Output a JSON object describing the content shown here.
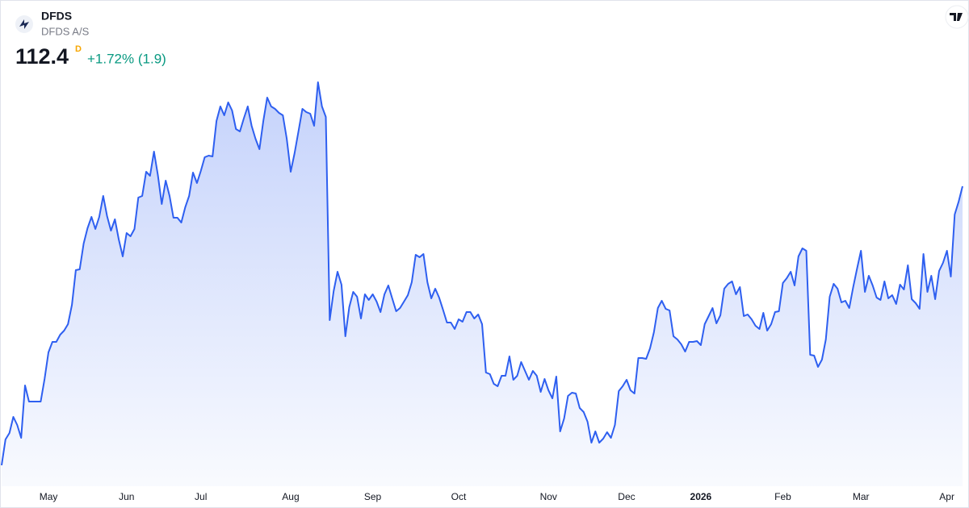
{
  "chart_data": {
    "type": "area",
    "title": "DFDS",
    "subtitle": "DFDS A/S",
    "price": 112.4,
    "interval": "D",
    "change": "+1.72% (1.9)",
    "color": "#2e5ff0",
    "ylim": [
      76,
      128
    ],
    "xticks": [
      {
        "value": 12,
        "label": "May"
      },
      {
        "value": 32,
        "label": "Jun"
      },
      {
        "value": 51,
        "label": "Jul"
      },
      {
        "value": 74,
        "label": "Aug"
      },
      {
        "value": 95,
        "label": "Sep"
      },
      {
        "value": 117,
        "label": "Oct"
      },
      {
        "value": 140,
        "label": "Nov"
      },
      {
        "value": 160,
        "label": "Dec"
      },
      {
        "value": 179,
        "label": "2026"
      },
      {
        "value": 200,
        "label": "Feb"
      },
      {
        "value": 220,
        "label": "Mar"
      },
      {
        "value": 242,
        "label": "Apr"
      }
    ],
    "values": [
      77.8,
      81.0,
      81.8,
      83.8,
      82.8,
      81.2,
      87.7,
      85.7,
      85.7,
      85.7,
      85.7,
      88.5,
      91.8,
      93.1,
      93.1,
      94.0,
      94.5,
      95.3,
      97.7,
      102.0,
      102.1,
      105.3,
      107.2,
      108.6,
      107.1,
      108.6,
      111.2,
      108.7,
      106.9,
      108.3,
      105.8,
      103.7,
      106.6,
      106.2,
      107.1,
      111.0,
      111.2,
      114.2,
      113.7,
      116.7,
      113.8,
      110.2,
      113.1,
      111.2,
      108.5,
      108.5,
      107.9,
      109.8,
      111.2,
      114.1,
      112.8,
      114.3,
      116.0,
      116.2,
      116.1,
      120.5,
      122.3,
      121.2,
      122.8,
      121.8,
      119.5,
      119.2,
      120.8,
      122.3,
      119.9,
      118.3,
      117.0,
      120.5,
      123.4,
      122.3,
      122.0,
      121.5,
      121.2,
      118.3,
      114.2,
      116.5,
      119.2,
      122.0,
      121.6,
      121.4,
      119.9,
      125.3,
      122.3,
      121.0,
      95.8,
      99.4,
      101.8,
      100.2,
      93.8,
      97.4,
      99.3,
      98.7,
      96.0,
      99.0,
      98.3,
      99.0,
      98.1,
      96.8,
      99.0,
      100.1,
      98.5,
      96.9,
      97.3,
      98.1,
      98.9,
      100.5,
      103.9,
      103.6,
      104.0,
      100.5,
      98.5,
      99.7,
      98.6,
      97.1,
      95.5,
      95.5,
      94.7,
      95.9,
      95.6,
      96.8,
      96.8,
      96.0,
      96.5,
      95.3,
      89.3,
      89.1,
      87.9,
      87.6,
      88.9,
      88.9,
      91.3,
      88.4,
      88.9,
      90.6,
      89.5,
      88.4,
      89.5,
      88.9,
      86.9,
      88.5,
      87.1,
      86.1,
      88.8,
      82.0,
      83.6,
      86.4,
      86.8,
      86.7,
      84.9,
      84.4,
      83.2,
      80.6,
      82.0,
      80.6,
      81.1,
      81.9,
      81.2,
      82.8,
      87.0,
      87.6,
      88.4,
      87.1,
      86.7,
      91.1,
      91.1,
      91.0,
      92.3,
      94.3,
      97.3,
      98.2,
      97.2,
      97.0,
      93.8,
      93.4,
      92.8,
      91.9,
      93.1,
      93.1,
      93.2,
      92.7,
      95.3,
      96.3,
      97.3,
      95.4,
      96.4,
      99.7,
      100.3,
      100.6,
      99.0,
      99.9,
      96.3,
      96.5,
      95.9,
      95.1,
      94.7,
      96.7,
      94.5,
      95.3,
      96.8,
      96.9,
      100.4,
      101.0,
      101.8,
      100.1,
      103.7,
      104.7,
      104.4,
      91.5,
      91.4,
      90.0,
      90.9,
      93.4,
      98.7,
      100.3,
      99.7,
      98.0,
      98.2,
      97.3,
      99.9,
      102.2,
      104.4,
      99.3,
      101.3,
      100.1,
      98.6,
      98.3,
      100.6,
      98.5,
      98.9,
      97.8,
      100.2,
      99.6,
      102.6,
      98.4,
      97.9,
      97.2,
      104.0,
      99.3,
      101.3,
      98.4,
      101.9,
      102.9,
      104.4,
      101.2,
      108.9,
      110.5,
      112.4
    ]
  }
}
